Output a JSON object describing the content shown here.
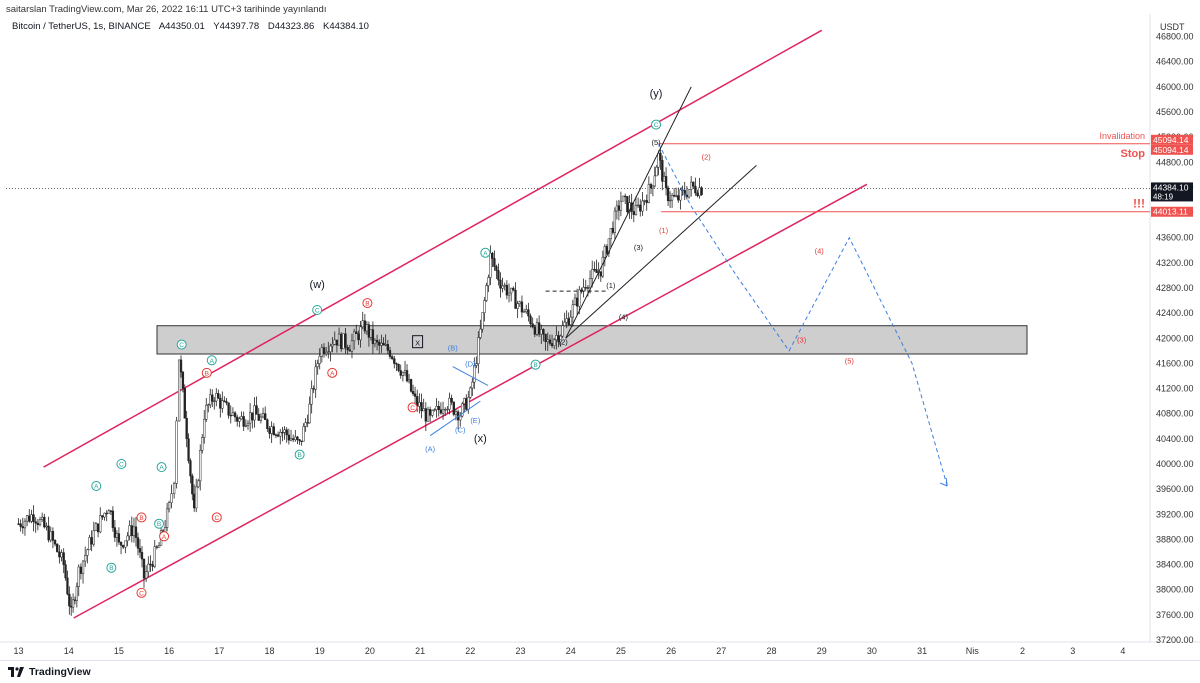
{
  "header": {
    "published": "saitarslan TradingView.com, Mar 26, 2022 16:11 UTC+3 tarihinde yayınlandı",
    "symbol": "Bitcoin / TetherUS, 1s, BINANCE",
    "open": "A44350.01",
    "high": "Y44397.78",
    "low": "D44323.86",
    "close": "K44384.10"
  },
  "footer": {
    "brand": "TradingView"
  },
  "colors": {
    "channel": "#e0245e",
    "projection": "#3d7fe0",
    "wave_label": "#e53935",
    "wave_alt": "#26a69a",
    "level_line": "#ef5350",
    "zone": "#bdbdbd"
  },
  "chart_data": {
    "type": "candlestick",
    "symbol": "BTCUSDT",
    "timeframe": "1h",
    "currency": "USDT",
    "ylim": [
      37200,
      47000
    ],
    "y_ticks": [
      37200,
      37600,
      38000,
      38400,
      38800,
      39200,
      39600,
      40000,
      40400,
      40800,
      41200,
      41600,
      42000,
      42400,
      42800,
      43200,
      43600,
      44000,
      44400,
      44800,
      45200,
      45600,
      46000,
      46400,
      46800
    ],
    "x_ticks": [
      "13",
      "14",
      "15",
      "16",
      "17",
      "18",
      "19",
      "20",
      "21",
      "22",
      "23",
      "24",
      "25",
      "26",
      "27",
      "28",
      "29",
      "30",
      "31",
      "Nis",
      "2",
      "3",
      "4"
    ],
    "x_range": [
      13,
      35
    ],
    "last_price": 44384.1,
    "countdown": "48:19",
    "levels": [
      {
        "label": "Invalidation",
        "price": 45094.14,
        "price_text": "45094.14"
      },
      {
        "label": "Stop",
        "price": 45094.14,
        "price_text": "45094.14"
      },
      {
        "label": "!!!",
        "price": 44013.11,
        "price_text": "44013.11"
      }
    ],
    "candles_close_path": [
      [
        13.0,
        39050
      ],
      [
        13.3,
        39200
      ],
      [
        13.6,
        38900
      ],
      [
        13.9,
        38400
      ],
      [
        14.05,
        37600
      ],
      [
        14.2,
        38300
      ],
      [
        14.5,
        38900
      ],
      [
        14.8,
        39350
      ],
      [
        15.0,
        38700
      ],
      [
        15.3,
        39000
      ],
      [
        15.5,
        38200
      ],
      [
        15.8,
        38700
      ],
      [
        16.0,
        39300
      ],
      [
        16.1,
        39800
      ],
      [
        16.2,
        41700
      ],
      [
        16.35,
        40500
      ],
      [
        16.5,
        39200
      ],
      [
        16.7,
        40800
      ],
      [
        16.9,
        41100
      ],
      [
        17.1,
        40900
      ],
      [
        17.4,
        40700
      ],
      [
        17.7,
        40800
      ],
      [
        18.0,
        40600
      ],
      [
        18.3,
        40500
      ],
      [
        18.6,
        40300
      ],
      [
        18.8,
        40900
      ],
      [
        19.0,
        41800
      ],
      [
        19.3,
        42000
      ],
      [
        19.6,
        41900
      ],
      [
        19.9,
        42200
      ],
      [
        20.1,
        41900
      ],
      [
        20.4,
        41800
      ],
      [
        20.7,
        41400
      ],
      [
        20.9,
        41000
      ],
      [
        21.2,
        40700
      ],
      [
        21.5,
        41000
      ],
      [
        21.8,
        40800
      ],
      [
        22.0,
        41100
      ],
      [
        22.2,
        42100
      ],
      [
        22.4,
        43300
      ],
      [
        22.6,
        42900
      ],
      [
        22.9,
        42600
      ],
      [
        23.2,
        42300
      ],
      [
        23.5,
        41900
      ],
      [
        23.8,
        42100
      ],
      [
        24.0,
        42400
      ],
      [
        24.3,
        42900
      ],
      [
        24.6,
        43100
      ],
      [
        24.8,
        43700
      ],
      [
        25.0,
        44200
      ],
      [
        25.3,
        44000
      ],
      [
        25.6,
        44400
      ],
      [
        25.75,
        44900
      ],
      [
        25.9,
        44300
      ],
      [
        26.1,
        44200
      ],
      [
        26.4,
        44400
      ],
      [
        26.65,
        44384
      ]
    ],
    "channel": {
      "upper": [
        [
          13.5,
          39950
        ],
        [
          29.0,
          46900
        ]
      ],
      "lower": [
        [
          14.1,
          37550
        ],
        [
          29.9,
          44450
        ]
      ]
    },
    "resistance_zone": [
      41750,
      42200
    ],
    "annotations": [
      {
        "text": "(w)",
        "day": 18.95,
        "price": 42850,
        "color": "#131722"
      },
      {
        "text": "(x)",
        "day": 22.2,
        "price": 40400,
        "color": "#131722"
      },
      {
        "text": "(y)",
        "day": 25.7,
        "price": 45890,
        "color": "#131722"
      },
      {
        "text": "X",
        "day": 20.95,
        "price": 41930,
        "color": "#131722",
        "boxed": true
      },
      {
        "text": "(1)",
        "day": 24.8,
        "price": 42850,
        "color": "#131722"
      },
      {
        "text": "(2)",
        "day": 23.85,
        "price": 41950,
        "color": "#131722"
      },
      {
        "text": "(3)",
        "day": 25.35,
        "price": 43450,
        "color": "#131722"
      },
      {
        "text": "(4)",
        "day": 25.05,
        "price": 42350,
        "color": "#131722"
      },
      {
        "text": "(5)",
        "day": 25.7,
        "price": 45120,
        "color": "#131722"
      },
      {
        "text": "(1)",
        "day": 25.85,
        "price": 43720,
        "color": "#e53935"
      },
      {
        "text": "(2)",
        "day": 26.7,
        "price": 44890,
        "color": "#e53935"
      },
      {
        "text": "(3)",
        "day": 28.6,
        "price": 41980,
        "color": "#e53935"
      },
      {
        "text": "(4)",
        "day": 28.95,
        "price": 43400,
        "color": "#e53935"
      },
      {
        "text": "(5)",
        "day": 29.55,
        "price": 41650,
        "color": "#e53935"
      },
      {
        "text": "(A)",
        "day": 21.2,
        "price": 40250,
        "color": "#3d7fe0"
      },
      {
        "text": "(B)",
        "day": 21.65,
        "price": 41850,
        "color": "#3d7fe0"
      },
      {
        "text": "(C)",
        "day": 21.8,
        "price": 40550,
        "color": "#3d7fe0"
      },
      {
        "text": "(D)",
        "day": 22.0,
        "price": 41600,
        "color": "#3d7fe0"
      },
      {
        "text": "(E)",
        "day": 22.1,
        "price": 40700,
        "color": "#3d7fe0"
      }
    ],
    "circled_labels": [
      {
        "text": "A",
        "day": 14.55,
        "price": 39650,
        "color": "#26a69a"
      },
      {
        "text": "B",
        "day": 14.85,
        "price": 38350,
        "color": "#26a69a"
      },
      {
        "text": "C",
        "day": 15.05,
        "price": 40000,
        "color": "#26a69a"
      },
      {
        "text": "B",
        "day": 15.45,
        "price": 39150,
        "color": "#e53935"
      },
      {
        "text": "C",
        "day": 15.45,
        "price": 37950,
        "color": "#e53935"
      },
      {
        "text": "A",
        "day": 15.9,
        "price": 38850,
        "color": "#e53935"
      },
      {
        "text": "B",
        "day": 15.8,
        "price": 39050,
        "color": "#26a69a"
      },
      {
        "text": "A",
        "day": 15.85,
        "price": 39950,
        "color": "#26a69a"
      },
      {
        "text": "C",
        "day": 16.25,
        "price": 41900,
        "color": "#26a69a"
      },
      {
        "text": "B",
        "day": 16.75,
        "price": 41450,
        "color": "#e53935"
      },
      {
        "text": "A",
        "day": 16.85,
        "price": 41650,
        "color": "#26a69a"
      },
      {
        "text": "C",
        "day": 16.95,
        "price": 39150,
        "color": "#e53935"
      },
      {
        "text": "B",
        "day": 18.6,
        "price": 40150,
        "color": "#26a69a"
      },
      {
        "text": "A",
        "day": 19.25,
        "price": 41450,
        "color": "#e53935"
      },
      {
        "text": "C",
        "day": 18.95,
        "price": 42450,
        "color": "#26a69a"
      },
      {
        "text": "B",
        "day": 19.95,
        "price": 42560,
        "color": "#e53935"
      },
      {
        "text": "C",
        "day": 20.85,
        "price": 40900,
        "color": "#e53935"
      },
      {
        "text": "A",
        "day": 22.3,
        "price": 43360,
        "color": "#26a69a"
      },
      {
        "text": "B",
        "day": 23.3,
        "price": 41580,
        "color": "#26a69a"
      },
      {
        "text": "C",
        "day": 25.7,
        "price": 45400,
        "color": "#26a69a"
      }
    ]
  }
}
